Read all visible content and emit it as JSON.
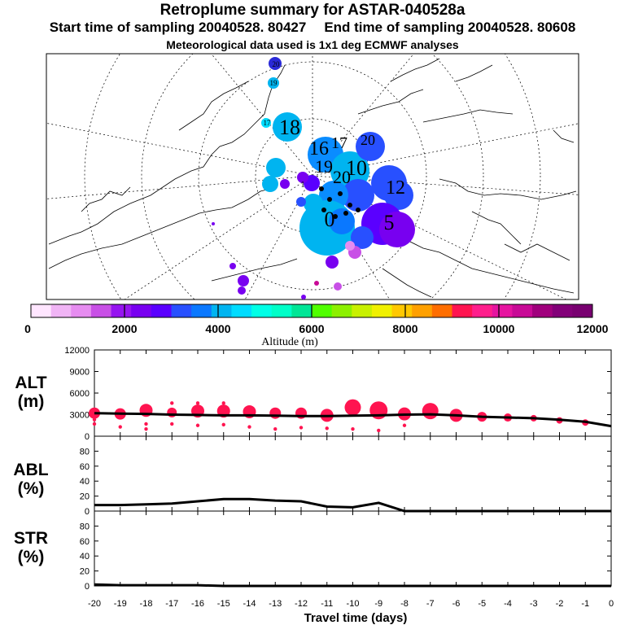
{
  "titles": {
    "title": "Retroplume summary for ASTAR-040528a",
    "subtitle_start": "Start time of sampling 20040528. 80427",
    "subtitle_end": "End time of sampling 20040528. 80608",
    "subtitle_met": "Meteorological data used is 1x1 deg ECMWF analyses"
  },
  "colorbar": {
    "label": "Altitude (m)",
    "ticks": [
      "0",
      "2000",
      "4000",
      "6000",
      "8000",
      "10000",
      "12000"
    ],
    "colors": [
      "#ffe6ff",
      "#f0b4f5",
      "#e68cf0",
      "#c850e6",
      "#9614f0",
      "#7800f0",
      "#5a00ff",
      "#2850ff",
      "#0a78ff",
      "#00b4f0",
      "#00dcff",
      "#00ffe6",
      "#00ffc8",
      "#00e696",
      "#50ff00",
      "#8cf000",
      "#c8f000",
      "#f0f000",
      "#ffc800",
      "#ffa000",
      "#ff6e00",
      "#ff1450",
      "#ff1e8c",
      "#e614a0",
      "#c80a96",
      "#a0007d",
      "#820078",
      "#780070"
    ]
  },
  "map_labels": [
    {
      "text": "20",
      "color": "#2a2ad8"
    },
    {
      "text": "19",
      "color": "#00b0e8"
    },
    {
      "text": "17",
      "color": "#00b0e8"
    },
    {
      "text": "18",
      "color": "#0a8cff"
    },
    {
      "text": "16",
      "color": "#0a8cff"
    },
    {
      "text": "17",
      "color": "#0a8cff"
    },
    {
      "text": "20",
      "color": "#2850ff"
    },
    {
      "text": "19",
      "color": "#0a8cff"
    },
    {
      "text": "20",
      "color": "#0a8cff"
    },
    {
      "text": "10",
      "color": "#0a8cff"
    },
    {
      "text": "12",
      "color": "#2850ff"
    },
    {
      "text": "5",
      "color": "#7800f0"
    },
    {
      "text": "1",
      "color": "#00b4f0"
    },
    {
      "text": "0",
      "color": "#00b4f0"
    }
  ],
  "chart_data": [
    {
      "type": "line",
      "panel": "ALT",
      "ylabel": "ALT (m)",
      "ylim": [
        0,
        12000
      ],
      "yticks": [
        0,
        3000,
        6000,
        9000,
        12000
      ],
      "x": [
        -20,
        -19,
        -18,
        -17,
        -16,
        -15,
        -14,
        -13,
        -12,
        -11,
        -10,
        -9,
        -8,
        -7,
        -6,
        -5,
        -4,
        -3,
        -2,
        -1,
        0
      ],
      "values": [
        3200,
        3150,
        3100,
        3000,
        2950,
        2900,
        2900,
        2850,
        2800,
        2800,
        2850,
        2900,
        3000,
        3050,
        2900,
        2700,
        2600,
        2500,
        2300,
        2000,
        1400
      ],
      "plume_points": [
        {
          "x": -20,
          "y": 3200,
          "size": 7,
          "pts": [
            2300,
            1700
          ]
        },
        {
          "x": -19,
          "y": 3100,
          "size": 7,
          "pts": [
            1300
          ]
        },
        {
          "x": -18,
          "y": 3600,
          "size": 8,
          "pts": [
            1700,
            1000
          ]
        },
        {
          "x": -17,
          "y": 3300,
          "size": 6,
          "pts": [
            4600,
            1700
          ]
        },
        {
          "x": -16,
          "y": 3500,
          "size": 8,
          "pts": [
            4600,
            1500
          ]
        },
        {
          "x": -15,
          "y": 3500,
          "size": 8,
          "pts": [
            4600,
            1600
          ]
        },
        {
          "x": -14,
          "y": 3400,
          "size": 8,
          "pts": [
            1300
          ]
        },
        {
          "x": -13,
          "y": 3200,
          "size": 7,
          "pts": [
            1000
          ]
        },
        {
          "x": -12,
          "y": 3200,
          "size": 7,
          "pts": [
            1200
          ]
        },
        {
          "x": -11,
          "y": 2900,
          "size": 8,
          "pts": [
            1100
          ]
        },
        {
          "x": -10,
          "y": 4000,
          "size": 10,
          "pts": [
            1000
          ]
        },
        {
          "x": -9,
          "y": 3600,
          "size": 11,
          "pts": [
            800
          ]
        },
        {
          "x": -8,
          "y": 3100,
          "size": 8,
          "pts": [
            1500
          ]
        },
        {
          "x": -7,
          "y": 3500,
          "size": 10,
          "pts": []
        },
        {
          "x": -6,
          "y": 2900,
          "size": 8,
          "pts": []
        },
        {
          "x": -5,
          "y": 2700,
          "size": 6,
          "pts": []
        },
        {
          "x": -4,
          "y": 2600,
          "size": 5,
          "pts": []
        },
        {
          "x": -3,
          "y": 2500,
          "size": 4,
          "pts": []
        },
        {
          "x": -2,
          "y": 2200,
          "size": 4,
          "pts": []
        },
        {
          "x": -1,
          "y": 1900,
          "size": 4,
          "pts": []
        }
      ]
    },
    {
      "type": "line",
      "panel": "ABL",
      "ylabel": "ABL (%)",
      "ylim": [
        0,
        100
      ],
      "yticks": [
        0,
        20,
        40,
        60,
        80
      ],
      "x": [
        -20,
        -19,
        -18,
        -17,
        -16,
        -15,
        -14,
        -13,
        -12,
        -11,
        -10,
        -9,
        -8,
        -7,
        -6,
        -5,
        -4,
        -3,
        -2,
        -1,
        0
      ],
      "values": [
        8,
        8,
        9,
        10,
        13,
        16,
        16,
        14,
        13,
        6,
        5,
        11,
        0,
        0,
        0,
        0,
        0,
        0,
        0,
        0,
        0
      ]
    },
    {
      "type": "line",
      "panel": "STR",
      "ylabel": "STR (%)",
      "ylim": [
        0,
        100
      ],
      "yticks": [
        0,
        20,
        40,
        60,
        80
      ],
      "x": [
        -20,
        -19,
        -18,
        -17,
        -16,
        -15,
        -14,
        -13,
        -12,
        -11,
        -10,
        -9,
        -8,
        -7,
        -6,
        -5,
        -4,
        -3,
        -2,
        -1,
        0
      ],
      "values": [
        2,
        1,
        1,
        1,
        1,
        0,
        0,
        0,
        0,
        0,
        0,
        0,
        0,
        0,
        0,
        0,
        0,
        0,
        0,
        0,
        0
      ]
    }
  ],
  "xaxis": {
    "label": "Travel time (days)",
    "ticks": [
      "-20",
      "-19",
      "-18",
      "-17",
      "-16",
      "-15",
      "-14",
      "-13",
      "-12",
      "-11",
      "-10",
      "-9",
      "-8",
      "-7",
      "-6",
      "-5",
      "-4",
      "-3",
      "-2",
      "-1",
      "0"
    ]
  },
  "panel_labels": {
    "alt_top": "ALT",
    "alt_bot": "(m)",
    "abl_top": "ABL",
    "abl_bot": "(%)",
    "str_top": "STR",
    "str_bot": "(%)"
  }
}
